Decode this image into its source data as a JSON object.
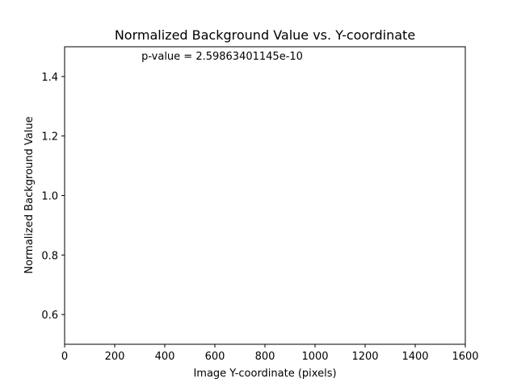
{
  "chart_data": {
    "type": "scatter",
    "title": "Normalized Background Value vs. Y-coordinate",
    "xlabel": "Image Y-coordinate (pixels)",
    "ylabel": "Normalized Background Value",
    "xlim": [
      0,
      1600
    ],
    "ylim": [
      0.5,
      1.5
    ],
    "xticks": [
      0,
      200,
      400,
      600,
      800,
      1000,
      1200,
      1400,
      1600
    ],
    "yticks": [
      0.6,
      0.8,
      1.0,
      1.2,
      1.4
    ],
    "xtick_labels": [
      "0",
      "200",
      "400",
      "600",
      "800",
      "1000",
      "1200",
      "1400",
      "1600"
    ],
    "ytick_labels": [
      "0.6",
      "0.8",
      "1.0",
      "1.2",
      "1.4"
    ],
    "annotation": {
      "text": "p-value = 2.59863401145e-10",
      "x": 800,
      "y": 1.47
    },
    "series": [],
    "grid": false
  }
}
